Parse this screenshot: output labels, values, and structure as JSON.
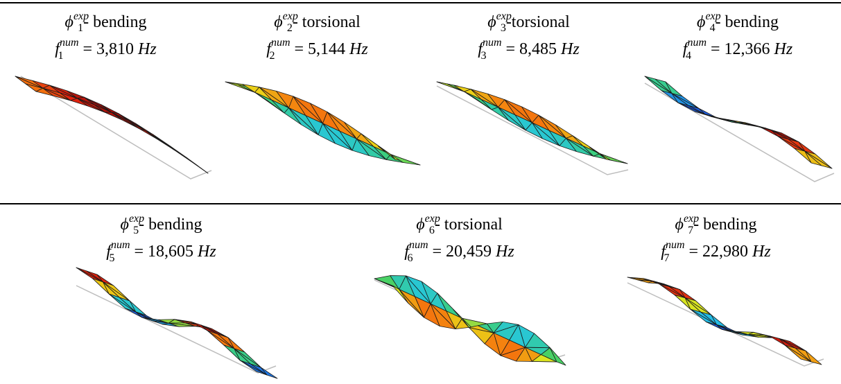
{
  "rows": [
    {
      "panels": [
        {
          "phi": "ϕ",
          "index": "1",
          "exp": "exp",
          "type": "- bending",
          "f": "f",
          "num": "num",
          "eq": "=",
          "value": "3,810",
          "unit": "Hz",
          "mode_icon": "bending-mode-icon"
        },
        {
          "phi": "ϕ",
          "index": "2",
          "exp": "exp",
          "type": "- torsional",
          "f": "f",
          "num": "num",
          "eq": "=",
          "value": "5,144",
          "unit": "Hz",
          "mode_icon": "torsional-mode-icon"
        },
        {
          "phi": "ϕ",
          "index": "3",
          "exp": "exp",
          "type": "-torsional",
          "f": "f",
          "num": "num",
          "eq": "=",
          "value": "8,485",
          "unit": "Hz",
          "mode_icon": "torsional-mode-icon"
        },
        {
          "phi": "ϕ",
          "index": "4",
          "exp": "exp",
          "type": "- bending",
          "f": "f",
          "num": "num",
          "eq": "=",
          "value": "12,366",
          "unit": "Hz",
          "mode_icon": "bending-mode-icon"
        }
      ]
    },
    {
      "panels": [
        {
          "phi": "ϕ",
          "index": "5",
          "exp": "exp",
          "type": "- bending",
          "f": "f",
          "num": "num",
          "eq": "=",
          "value": "18,605",
          "unit": "Hz",
          "mode_icon": "bending-mode-icon"
        },
        {
          "phi": "ϕ",
          "index": "6",
          "exp": "exp",
          "type": "- torsional",
          "f": "f",
          "num": "num",
          "eq": "=",
          "value": "20,459",
          "unit": "Hz",
          "mode_icon": "torsional-mode-icon"
        },
        {
          "phi": "ϕ",
          "index": "7",
          "exp": "exp",
          "type": "- bending",
          "f": "f",
          "num": "num",
          "eq": "=",
          "value": "22,980",
          "unit": "Hz",
          "mode_icon": "bending-mode-icon"
        }
      ]
    }
  ],
  "colors": {
    "rule": "#000000",
    "mesh": "#1a1a1a",
    "outline": "#bdbdbd",
    "red": "#e0240f",
    "darkred": "#a10c08",
    "orange": "#f57a0e",
    "yellow": "#e8e61a",
    "green": "#3fd06a",
    "cyan": "#25c5e6",
    "blue": "#1a3fe0"
  }
}
